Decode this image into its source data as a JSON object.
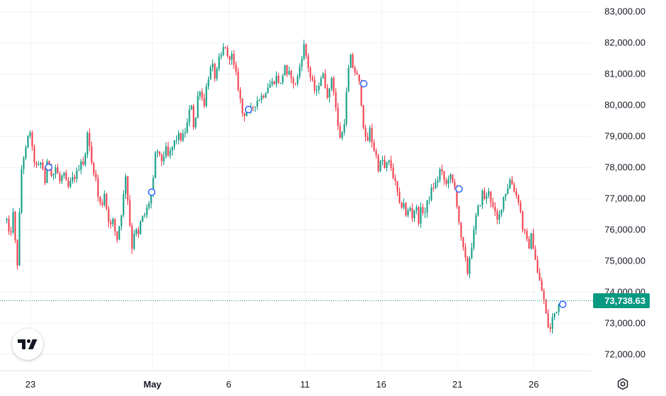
{
  "colors": {
    "up": "#089981",
    "down": "#f23645",
    "grid": "#f0f3fa",
    "text": "#131722",
    "marker": "#2962ff"
  },
  "logo": {
    "name": "tradingview-logo",
    "label": "TV"
  },
  "settings": {
    "icon": "gear-icon"
  },
  "chart_data": {
    "type": "candlestick",
    "title": "",
    "xlabel": "",
    "ylabel": "",
    "ylim": [
      71700,
      83200
    ],
    "yticks": [
      "83,000.00",
      "82,000.00",
      "81,000.00",
      "80,000.00",
      "79,000.00",
      "78,000.00",
      "77,000.00",
      "76,000.00",
      "75,000.00",
      "74,000.00",
      "73,000.00",
      "72,000.00"
    ],
    "ytick_values": [
      83000,
      82000,
      81000,
      80000,
      79000,
      78000,
      77000,
      76000,
      75000,
      74000,
      73000,
      72000
    ],
    "xticks": [
      {
        "label": "23",
        "day": 0,
        "bold": false
      },
      {
        "label": "May",
        "day": 8,
        "bold": true
      },
      {
        "label": "6",
        "day": 13,
        "bold": false
      },
      {
        "label": "11",
        "day": 18,
        "bold": false
      },
      {
        "label": "16",
        "day": 23,
        "bold": false
      },
      {
        "label": "21",
        "day": 28,
        "bold": false
      },
      {
        "label": "26",
        "day": 33,
        "bold": false
      }
    ],
    "xrange": [
      -1.7,
      36.7
    ],
    "price_path": [
      [
        -1.6,
        76300
      ],
      [
        -1.4,
        75600
      ],
      [
        -1.2,
        76600
      ],
      [
        -1.0,
        75300
      ],
      [
        -0.9,
        74900
      ],
      [
        -0.7,
        77200
      ],
      [
        -0.6,
        78200
      ],
      [
        -0.3,
        78600
      ],
      [
        -0.1,
        79300
      ],
      [
        0.1,
        78400
      ],
      [
        0.4,
        77900
      ],
      [
        0.7,
        78200
      ],
      [
        0.9,
        77500
      ],
      [
        1.1,
        78300
      ],
      [
        1.4,
        77700
      ],
      [
        1.6,
        78000
      ],
      [
        1.9,
        77500
      ],
      [
        2.1,
        77800
      ],
      [
        2.4,
        77300
      ],
      [
        2.7,
        77600
      ],
      [
        3.0,
        77800
      ],
      [
        3.3,
        78300
      ],
      [
        3.5,
        78000
      ],
      [
        3.7,
        79300
      ],
      [
        3.9,
        78200
      ],
      [
        4.2,
        77800
      ],
      [
        4.4,
        77000
      ],
      [
        4.6,
        76700
      ],
      [
        4.8,
        77200
      ],
      [
        5.0,
        76500
      ],
      [
        5.2,
        76100
      ],
      [
        5.4,
        76300
      ],
      [
        5.6,
        75600
      ],
      [
        5.8,
        76200
      ],
      [
        6.0,
        76800
      ],
      [
        6.2,
        77800
      ],
      [
        6.4,
        76600
      ],
      [
        6.6,
        75400
      ],
      [
        6.8,
        76100
      ],
      [
        7.0,
        75700
      ],
      [
        7.2,
        76300
      ],
      [
        7.5,
        76500
      ],
      [
        7.8,
        77000
      ],
      [
        7.95,
        77200
      ],
      [
        8.2,
        78700
      ],
      [
        8.4,
        78300
      ],
      [
        8.6,
        78200
      ],
      [
        8.8,
        78600
      ],
      [
        9.0,
        78300
      ],
      [
        9.3,
        78700
      ],
      [
        9.6,
        79000
      ],
      [
        9.9,
        78900
      ],
      [
        10.2,
        79300
      ],
      [
        10.5,
        80100
      ],
      [
        10.7,
        79100
      ],
      [
        10.9,
        80200
      ],
      [
        11.1,
        80600
      ],
      [
        11.3,
        79900
      ],
      [
        11.5,
        80600
      ],
      [
        11.7,
        81100
      ],
      [
        11.9,
        81200
      ],
      [
        12.1,
        80800
      ],
      [
        12.3,
        81400
      ],
      [
        12.5,
        81600
      ],
      [
        12.7,
        82000
      ],
      [
        12.9,
        81400
      ],
      [
        13.1,
        81700
      ],
      [
        13.3,
        81200
      ],
      [
        13.5,
        80800
      ],
      [
        13.7,
        80200
      ],
      [
        13.9,
        79600
      ],
      [
        14.1,
        79900
      ],
      [
        14.3,
        79700
      ],
      [
        14.6,
        80000
      ],
      [
        14.9,
        80200
      ],
      [
        15.2,
        80300
      ],
      [
        15.5,
        80600
      ],
      [
        15.8,
        80700
      ],
      [
        16.1,
        80900
      ],
      [
        16.4,
        80600
      ],
      [
        16.6,
        81400
      ],
      [
        16.8,
        80800
      ],
      [
        17.0,
        81100
      ],
      [
        17.2,
        80600
      ],
      [
        17.5,
        80900
      ],
      [
        17.7,
        81500
      ],
      [
        17.9,
        81900
      ],
      [
        18.1,
        81400
      ],
      [
        18.3,
        80900
      ],
      [
        18.5,
        80600
      ],
      [
        18.7,
        80300
      ],
      [
        18.9,
        80800
      ],
      [
        19.1,
        81000
      ],
      [
        19.3,
        80600
      ],
      [
        19.5,
        80200
      ],
      [
        19.7,
        80900
      ],
      [
        19.9,
        80300
      ],
      [
        20.1,
        79300
      ],
      [
        20.3,
        78900
      ],
      [
        20.5,
        79300
      ],
      [
        20.7,
        80500
      ],
      [
        20.9,
        81600
      ],
      [
        21.1,
        81200
      ],
      [
        21.3,
        81000
      ],
      [
        21.5,
        80700
      ],
      [
        21.7,
        79900
      ],
      [
        21.85,
        79000
      ],
      [
        22.0,
        78700
      ],
      [
        22.2,
        79200
      ],
      [
        22.4,
        78700
      ],
      [
        22.6,
        78400
      ],
      [
        22.8,
        77900
      ],
      [
        23.0,
        78300
      ],
      [
        23.2,
        77900
      ],
      [
        23.4,
        78200
      ],
      [
        23.6,
        78000
      ],
      [
        23.8,
        77600
      ],
      [
        24.0,
        77200
      ],
      [
        24.2,
        76600
      ],
      [
        24.4,
        77000
      ],
      [
        24.6,
        76300
      ],
      [
        24.8,
        76800
      ],
      [
        25.0,
        76400
      ],
      [
        25.2,
        76800
      ],
      [
        25.4,
        76300
      ],
      [
        25.6,
        76700
      ],
      [
        25.8,
        76500
      ],
      [
        26.0,
        76900
      ],
      [
        26.2,
        77200
      ],
      [
        26.4,
        77400
      ],
      [
        26.6,
        77500
      ],
      [
        26.8,
        77900
      ],
      [
        27.0,
        77700
      ],
      [
        27.2,
        77400
      ],
      [
        27.4,
        77800
      ],
      [
        27.6,
        77500
      ],
      [
        27.8,
        77300
      ],
      [
        28.0,
        76500
      ],
      [
        28.2,
        75600
      ],
      [
        28.4,
        75200
      ],
      [
        28.6,
        74600
      ],
      [
        28.8,
        75300
      ],
      [
        29.0,
        75800
      ],
      [
        29.2,
        76500
      ],
      [
        29.4,
        76800
      ],
      [
        29.6,
        77200
      ],
      [
        29.8,
        76900
      ],
      [
        30.0,
        77300
      ],
      [
        30.2,
        76800
      ],
      [
        30.4,
        76500
      ],
      [
        30.6,
        76200
      ],
      [
        30.8,
        76700
      ],
      [
        31.0,
        77100
      ],
      [
        31.2,
        77300
      ],
      [
        31.4,
        77600
      ],
      [
        31.6,
        77400
      ],
      [
        31.8,
        77100
      ],
      [
        32.0,
        76900
      ],
      [
        32.2,
        76100
      ],
      [
        32.4,
        75800
      ],
      [
        32.6,
        75400
      ],
      [
        32.8,
        75800
      ],
      [
        33.0,
        75300
      ],
      [
        33.2,
        74600
      ],
      [
        33.4,
        74200
      ],
      [
        33.6,
        73800
      ],
      [
        33.8,
        73100
      ],
      [
        34.0,
        72700
      ],
      [
        34.2,
        73200
      ],
      [
        34.4,
        73400
      ],
      [
        34.6,
        73600
      ],
      [
        34.8,
        73740
      ]
    ],
    "markers": [
      {
        "day": 1.2,
        "price": 78000
      },
      {
        "day": 7.95,
        "price": 77200
      },
      {
        "day": 14.3,
        "price": 79850
      },
      {
        "day": 21.85,
        "price": 80680
      },
      {
        "day": 28.1,
        "price": 77300
      },
      {
        "day": 34.9,
        "price": 73600
      }
    ],
    "last_price": 73738.63,
    "last_price_label": "73,738.63"
  }
}
